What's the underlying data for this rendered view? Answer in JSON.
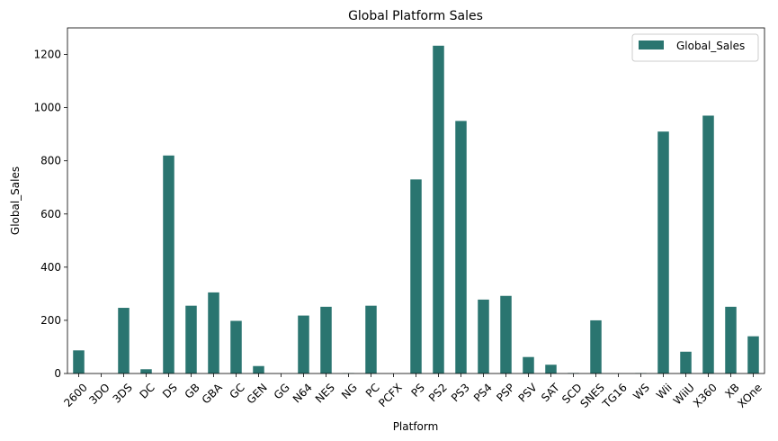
{
  "chart_data": {
    "type": "bar",
    "title": "Global Platform Sales",
    "xlabel": "Platform",
    "ylabel": "Global_Sales",
    "categories": [
      "2600",
      "3DO",
      "3DS",
      "DC",
      "DS",
      "GB",
      "GBA",
      "GC",
      "GEN",
      "GG",
      "N64",
      "NES",
      "NG",
      "PC",
      "PCFX",
      "PS",
      "PS2",
      "PS3",
      "PS4",
      "PSP",
      "PSV",
      "SAT",
      "SCD",
      "SNES",
      "TG16",
      "WS",
      "Wii",
      "WiiU",
      "X360",
      "XB",
      "XOne"
    ],
    "series": [
      {
        "name": "Global_Sales",
        "color": "#2a7570",
        "values": [
          87,
          0.1,
          247,
          16,
          820,
          255,
          305,
          198,
          28,
          0.04,
          218,
          251,
          1.4,
          255,
          0.03,
          730,
          1233,
          950,
          278,
          292,
          62,
          33,
          1.9,
          200,
          0.16,
          1.4,
          910,
          82,
          970,
          251,
          140
        ]
      }
    ],
    "ylim": [
      0,
      1300
    ],
    "yticks": [
      0,
      200,
      400,
      600,
      800,
      1000,
      1200
    ],
    "legend_position": "top-right",
    "grid": false
  }
}
